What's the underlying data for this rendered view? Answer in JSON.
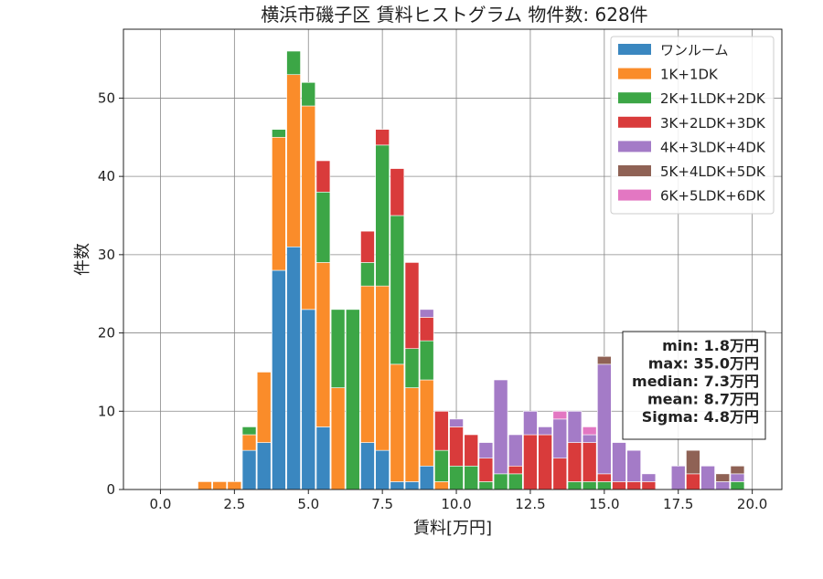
{
  "chart_data": {
    "type": "bar",
    "stacked": true,
    "title": "横浜市磯子区 賃料ヒストグラム 物件数: 628件",
    "xlabel": "賃料[万円]",
    "ylabel": "件数",
    "xlim": [
      -1.25,
      21
    ],
    "ylim": [
      0,
      58.8
    ],
    "grid": true,
    "legend_position": "top-right",
    "bin_width": 0.5,
    "xticks": [
      "0.0",
      "2.5",
      "5.0",
      "7.5",
      "10.0",
      "12.5",
      "15.0",
      "17.5",
      "20.0"
    ],
    "xtick_values": [
      0,
      2.5,
      5,
      7.5,
      10,
      12.5,
      15,
      17.5,
      20
    ],
    "yticks": [
      "0",
      "10",
      "20",
      "30",
      "40",
      "50"
    ],
    "ytick_values": [
      0,
      10,
      20,
      30,
      40,
      50
    ],
    "bins": [
      1.5,
      2.0,
      2.5,
      3.0,
      3.5,
      4.0,
      4.5,
      5.0,
      5.5,
      6.0,
      6.5,
      7.0,
      7.5,
      8.0,
      8.5,
      9.0,
      9.5,
      10.0,
      10.5,
      11.0,
      11.5,
      12.0,
      12.5,
      13.0,
      13.5,
      14.0,
      14.5,
      15.0,
      15.5,
      16.0,
      16.5,
      17.0,
      17.5,
      18.0,
      18.5,
      19.0,
      19.5
    ],
    "series": [
      {
        "name": "ワンルーム",
        "color": "#3a87c0",
        "values": [
          0,
          0,
          0,
          5,
          6,
          28,
          31,
          23,
          8,
          0,
          0,
          6,
          5,
          1,
          1,
          3,
          0,
          0,
          0,
          0,
          0,
          0,
          0,
          0,
          0,
          0,
          0,
          0,
          0,
          0,
          0,
          0,
          0,
          0,
          0,
          0,
          0
        ]
      },
      {
        "name": "1K+1DK",
        "color": "#fa8c2a",
        "values": [
          1,
          1,
          1,
          2,
          9,
          17,
          22,
          26,
          21,
          13,
          0,
          20,
          21,
          15,
          12,
          11,
          1,
          0,
          0,
          0,
          0,
          0,
          0,
          0,
          0,
          0,
          0,
          0,
          0,
          0,
          0,
          0,
          0,
          0,
          0,
          0,
          0
        ]
      },
      {
        "name": "2K+1LDK+2DK",
        "color": "#3ca646",
        "values": [
          0,
          0,
          0,
          1,
          0,
          1,
          3,
          3,
          9,
          10,
          23,
          3,
          18,
          19,
          5,
          5,
          4,
          3,
          3,
          1,
          2,
          2,
          0,
          0,
          0,
          1,
          1,
          1,
          0,
          0,
          0,
          0,
          0,
          0,
          0,
          0,
          1
        ]
      },
      {
        "name": "3K+2LDK+3DK",
        "color": "#d93b3b",
        "values": [
          0,
          0,
          0,
          0,
          0,
          0,
          0,
          0,
          4,
          0,
          0,
          4,
          2,
          6,
          11,
          3,
          5,
          5,
          4,
          3,
          0,
          1,
          7,
          7,
          4,
          5,
          5,
          1,
          1,
          1,
          1,
          0,
          0,
          2,
          0,
          0,
          0
        ]
      },
      {
        "name": "4K+3LDK+4DK",
        "color": "#a47bc7",
        "values": [
          0,
          0,
          0,
          0,
          0,
          0,
          0,
          0,
          0,
          0,
          0,
          0,
          0,
          0,
          0,
          1,
          0,
          1,
          0,
          2,
          12,
          4,
          3,
          1,
          5,
          4,
          1,
          14,
          5,
          4,
          1,
          0,
          3,
          0,
          3,
          1,
          1
        ]
      },
      {
        "name": "5K+4LDK+5DK",
        "color": "#8f6255",
        "values": [
          0,
          0,
          0,
          0,
          0,
          0,
          0,
          0,
          0,
          0,
          0,
          0,
          0,
          0,
          0,
          0,
          0,
          0,
          0,
          0,
          0,
          0,
          0,
          0,
          0,
          0,
          0,
          1,
          0,
          0,
          0,
          0,
          0,
          3,
          0,
          1,
          1
        ]
      },
      {
        "name": "6K+5LDK+6DK",
        "color": "#e377c2",
        "values": [
          0,
          0,
          0,
          0,
          0,
          0,
          0,
          0,
          0,
          0,
          0,
          0,
          0,
          0,
          0,
          0,
          0,
          0,
          0,
          0,
          0,
          0,
          0,
          0,
          1,
          0,
          1,
          0,
          0,
          0,
          0,
          0,
          0,
          0,
          0,
          0,
          0
        ]
      }
    ],
    "stats": [
      "min: 1.8万円",
      "max: 35.0万円",
      "median: 7.3万円",
      "mean: 8.7万円",
      "Sigma: 4.8万円"
    ]
  }
}
